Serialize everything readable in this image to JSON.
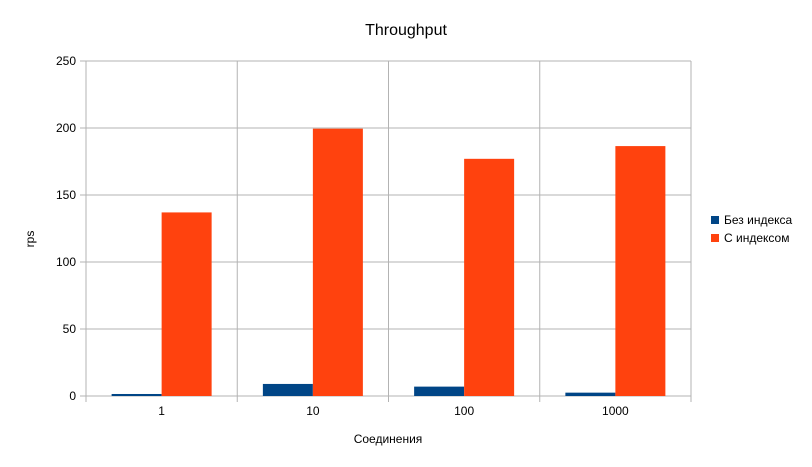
{
  "chart_data": {
    "type": "bar",
    "title": "Throughput",
    "xlabel": "Соединения",
    "ylabel": "rps",
    "categories": [
      "1",
      "10",
      "100",
      "1000"
    ],
    "series": [
      {
        "name": "Без индекса",
        "color": "#004586",
        "values": [
          1.5,
          9,
          7,
          2.5
        ]
      },
      {
        "name": "С индексом",
        "color": "#ff420e",
        "values": [
          137,
          199.5,
          177,
          186.5
        ]
      }
    ],
    "ylim": [
      0,
      250
    ],
    "yticks": [
      0,
      50,
      100,
      150,
      200,
      250
    ],
    "grid": true,
    "legend": "right"
  }
}
